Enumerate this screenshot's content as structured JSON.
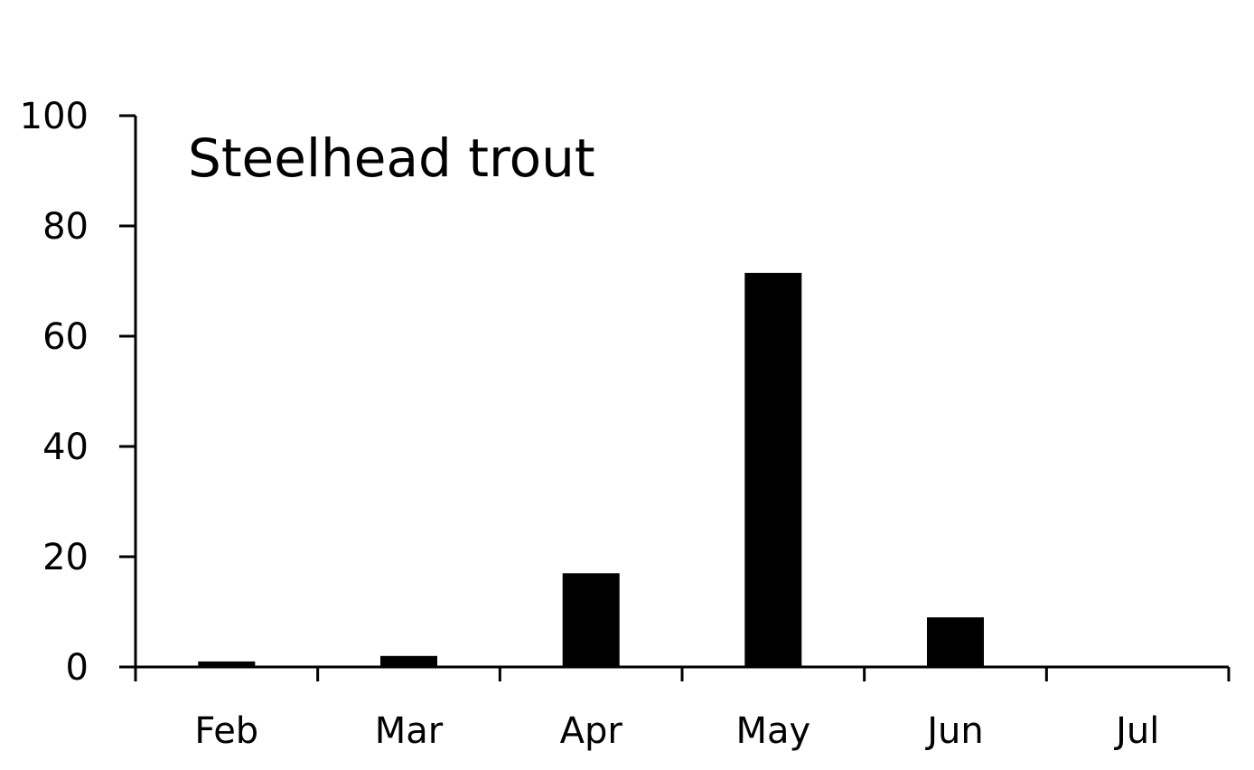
{
  "chart_data": {
    "type": "bar",
    "title": "Steelhead trout",
    "categories": [
      "Feb",
      "Mar",
      "Apr",
      "May",
      "Jun",
      "Jul"
    ],
    "values": [
      1,
      2,
      17,
      71.5,
      9,
      0
    ],
    "ylim": [
      0,
      100
    ],
    "yticks": [
      0,
      20,
      40,
      60,
      80,
      100
    ],
    "xlabel": "",
    "ylabel": "",
    "grid": false,
    "bar_color": "#000000",
    "axis_color": "#000000"
  }
}
